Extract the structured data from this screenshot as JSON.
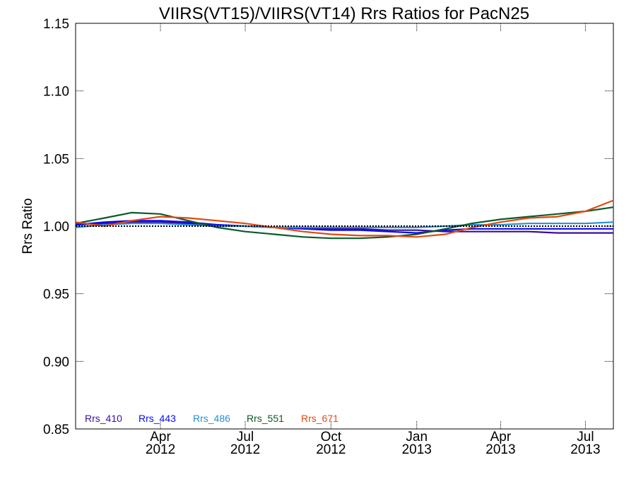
{
  "chart_data": {
    "type": "line",
    "title": "VIIRS(VT15)/VIIRS(VT14)  Rrs Ratios for PacN25",
    "ylabel": "Rrs Ratio",
    "xlabel": "",
    "ylim": [
      0.85,
      1.15
    ],
    "xlim": [
      "2012-01-01",
      "2013-07-31"
    ],
    "reference_line": 1.0,
    "y_ticks": [
      {
        "value": 0.85,
        "label": "0.85"
      },
      {
        "value": 0.9,
        "label": "0.90"
      },
      {
        "value": 0.95,
        "label": "0.95"
      },
      {
        "value": 1.0,
        "label": "1.00"
      },
      {
        "value": 1.05,
        "label": "1.05"
      },
      {
        "value": 1.1,
        "label": "1.10"
      },
      {
        "value": 1.15,
        "label": "1.15"
      }
    ],
    "x_ticks": [
      {
        "date": "2012-04-01",
        "month": "Apr",
        "year": "2012"
      },
      {
        "date": "2012-07-01",
        "month": "Jul",
        "year": "2012"
      },
      {
        "date": "2012-10-01",
        "month": "Oct",
        "year": "2012"
      },
      {
        "date": "2013-01-01",
        "month": "Jan",
        "year": "2013"
      },
      {
        "date": "2013-04-01",
        "month": "Apr",
        "year": "2013"
      },
      {
        "date": "2013-07-01",
        "month": "Jul",
        "year": "2013"
      }
    ],
    "grid": false,
    "legend_position": "bottom-left",
    "series": [
      {
        "name": "Rrs_410",
        "color": "#3a0ea0",
        "x": [
          "2012-01-01",
          "2012-02-01",
          "2012-03-01",
          "2012-04-01",
          "2012-05-01",
          "2012-06-01",
          "2012-07-01",
          "2012-08-01",
          "2012-09-01",
          "2012-10-01",
          "2012-11-01",
          "2012-12-01",
          "2013-01-01",
          "2013-02-01",
          "2013-03-01",
          "2013-04-01",
          "2013-05-01",
          "2013-06-01",
          "2013-07-01",
          "2013-07-31"
        ],
        "values": [
          1.001,
          1.002,
          1.003,
          1.003,
          1.002,
          1.001,
          1.0,
          0.999,
          0.999,
          0.998,
          0.998,
          0.997,
          0.997,
          0.996,
          0.996,
          0.996,
          0.996,
          0.995,
          0.995,
          0.995
        ]
      },
      {
        "name": "Rrs_443",
        "color": "#0a0aee",
        "x": [
          "2012-01-01",
          "2012-02-01",
          "2012-03-01",
          "2012-04-01",
          "2012-05-01",
          "2012-06-01",
          "2012-07-01",
          "2012-08-01",
          "2012-09-01",
          "2012-10-01",
          "2012-11-01",
          "2012-12-01",
          "2013-01-01",
          "2013-02-01",
          "2013-03-01",
          "2013-04-01",
          "2013-05-01",
          "2013-06-01",
          "2013-07-01",
          "2013-07-31"
        ],
        "values": [
          1.001,
          1.003,
          1.004,
          1.004,
          1.003,
          1.001,
          1.0,
          0.999,
          0.998,
          0.997,
          0.997,
          0.996,
          0.995,
          0.997,
          0.998,
          0.998,
          0.998,
          0.998,
          0.998,
          0.998
        ]
      },
      {
        "name": "Rrs_486",
        "color": "#2a8fd0",
        "x": [
          "2012-01-01",
          "2012-02-01",
          "2012-03-01",
          "2012-04-01",
          "2012-05-01",
          "2012-06-01",
          "2012-07-01",
          "2012-08-01",
          "2012-09-01",
          "2012-10-01",
          "2012-11-01",
          "2012-12-01",
          "2013-01-01",
          "2013-02-01",
          "2013-03-01",
          "2013-04-01",
          "2013-05-01",
          "2013-06-01",
          "2013-07-01",
          "2013-07-31"
        ],
        "values": [
          0.999,
          1.001,
          1.002,
          1.002,
          1.001,
          1.0,
          1.0,
          0.999,
          0.999,
          0.999,
          0.999,
          0.999,
          0.999,
          1.0,
          1.001,
          1.001,
          1.002,
          1.002,
          1.002,
          1.003
        ]
      },
      {
        "name": "Rrs_551",
        "color": "#0a5a2a",
        "x": [
          "2012-01-01",
          "2012-02-01",
          "2012-03-01",
          "2012-04-01",
          "2012-05-01",
          "2012-06-01",
          "2012-07-01",
          "2012-08-01",
          "2012-09-01",
          "2012-10-01",
          "2012-11-01",
          "2012-12-01",
          "2013-01-01",
          "2013-02-01",
          "2013-03-01",
          "2013-04-01",
          "2013-05-01",
          "2013-06-01",
          "2013-07-01",
          "2013-07-31"
        ],
        "values": [
          1.002,
          1.006,
          1.01,
          1.009,
          1.004,
          0.999,
          0.996,
          0.994,
          0.992,
          0.991,
          0.991,
          0.992,
          0.994,
          0.998,
          1.002,
          1.005,
          1.007,
          1.009,
          1.011,
          1.014
        ]
      },
      {
        "name": "Rrs_671",
        "color": "#e04a10",
        "x": [
          "2012-01-01",
          "2012-02-01",
          "2012-03-01",
          "2012-04-01",
          "2012-05-01",
          "2012-06-01",
          "2012-07-01",
          "2012-08-01",
          "2012-09-01",
          "2012-10-01",
          "2012-11-01",
          "2012-12-01",
          "2013-01-01",
          "2013-02-01",
          "2013-03-01",
          "2013-04-01",
          "2013-05-01",
          "2013-06-01",
          "2013-07-01",
          "2013-07-31"
        ],
        "values": [
          1.003,
          1.0,
          1.004,
          1.007,
          1.006,
          1.004,
          1.002,
          0.999,
          0.996,
          0.994,
          0.993,
          0.993,
          0.992,
          0.994,
          0.999,
          1.003,
          1.006,
          1.007,
          1.011,
          1.019
        ]
      }
    ]
  }
}
